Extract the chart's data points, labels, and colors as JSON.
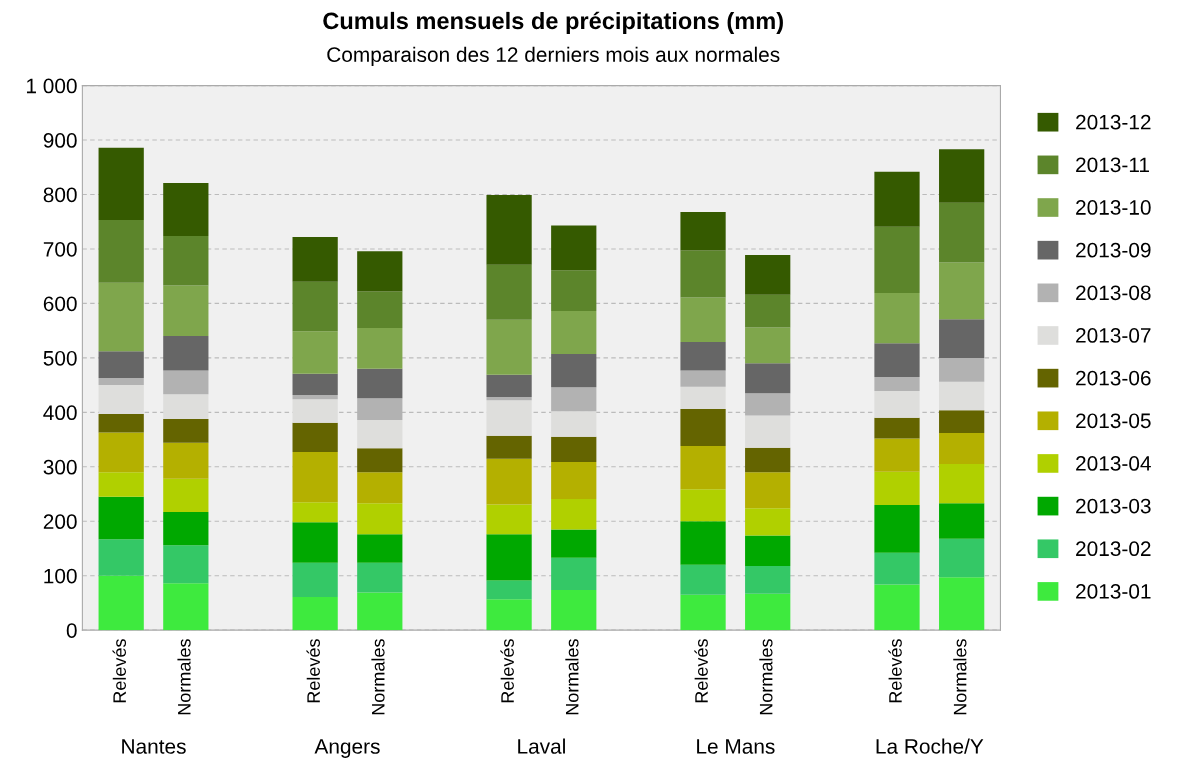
{
  "chart_data": {
    "type": "bar",
    "stacked": true,
    "title": "Cumuls mensuels de précipitations (mm)",
    "subtitle": "Comparaison des 12 derniers mois aux normales",
    "categories": [
      "Relevés",
      "Normales",
      null,
      "Relevés",
      "Normales",
      null,
      "Relevés",
      "Normales",
      null,
      "Relevés",
      "Normales",
      null,
      "Relevés",
      "Normales"
    ],
    "annotations": [
      "Nantes",
      "Angers",
      "Laval",
      "Le Mans",
      "La Roche/Y"
    ],
    "ylim": [
      0,
      1000
    ],
    "yticks": [
      0,
      100,
      200,
      300,
      400,
      500,
      600,
      700,
      800,
      900,
      {
        "value": 1000,
        "label": "1 000"
      }
    ],
    "grid": "y",
    "legend": "right",
    "series": [
      {
        "name": "2013-01",
        "color": "#3eea3e",
        "values": [
          100,
          86,
          null,
          61,
          69,
          null,
          57,
          74,
          null,
          65,
          67,
          null,
          84,
          97
        ]
      },
      {
        "name": "2013-02",
        "color": "#34c866",
        "values": [
          67,
          70,
          null,
          63,
          55,
          null,
          34,
          59,
          null,
          55,
          51,
          null,
          58,
          71
        ]
      },
      {
        "name": "2013-03",
        "color": "#00a800",
        "values": [
          78,
          61,
          null,
          74,
          52,
          null,
          85,
          52,
          null,
          80,
          56,
          null,
          88,
          65
        ]
      },
      {
        "name": "2013-04",
        "color": "#b0d000",
        "values": [
          45,
          61,
          null,
          37,
          57,
          null,
          55,
          56,
          null,
          59,
          50,
          null,
          61,
          72
        ]
      },
      {
        "name": "2013-05",
        "color": "#b4b000",
        "values": [
          73,
          66,
          null,
          92,
          57,
          null,
          84,
          68,
          null,
          79,
          66,
          null,
          61,
          57
        ]
      },
      {
        "name": "2013-06",
        "color": "#646400",
        "values": [
          34,
          44,
          null,
          54,
          44,
          null,
          42,
          46,
          null,
          68,
          45,
          null,
          38,
          42
        ]
      },
      {
        "name": "2013-07",
        "color": "#dededc",
        "values": [
          53,
          45,
          null,
          43,
          52,
          null,
          65,
          47,
          null,
          41,
          59,
          null,
          49,
          52
        ]
      },
      {
        "name": "2013-08",
        "color": "#b2b2b2",
        "values": [
          13,
          44,
          null,
          8,
          40,
          null,
          6,
          44,
          null,
          30,
          41,
          null,
          26,
          44
        ]
      },
      {
        "name": "2013-09",
        "color": "#666666",
        "values": [
          49,
          63,
          null,
          39,
          54,
          null,
          41,
          61,
          null,
          52,
          55,
          null,
          62,
          71
        ]
      },
      {
        "name": "2013-10",
        "color": "#7fa64c",
        "values": [
          126,
          93,
          null,
          78,
          75,
          null,
          101,
          79,
          null,
          82,
          66,
          null,
          92,
          104
        ]
      },
      {
        "name": "2013-11",
        "color": "#5c852b",
        "values": [
          115,
          91,
          null,
          91,
          67,
          null,
          101,
          75,
          null,
          86,
          60,
          null,
          122,
          110
        ]
      },
      {
        "name": "2013-12",
        "color": "#355a00",
        "values": [
          133,
          97,
          null,
          82,
          74,
          null,
          128,
          82,
          null,
          71,
          73,
          null,
          101,
          98
        ]
      }
    ]
  }
}
